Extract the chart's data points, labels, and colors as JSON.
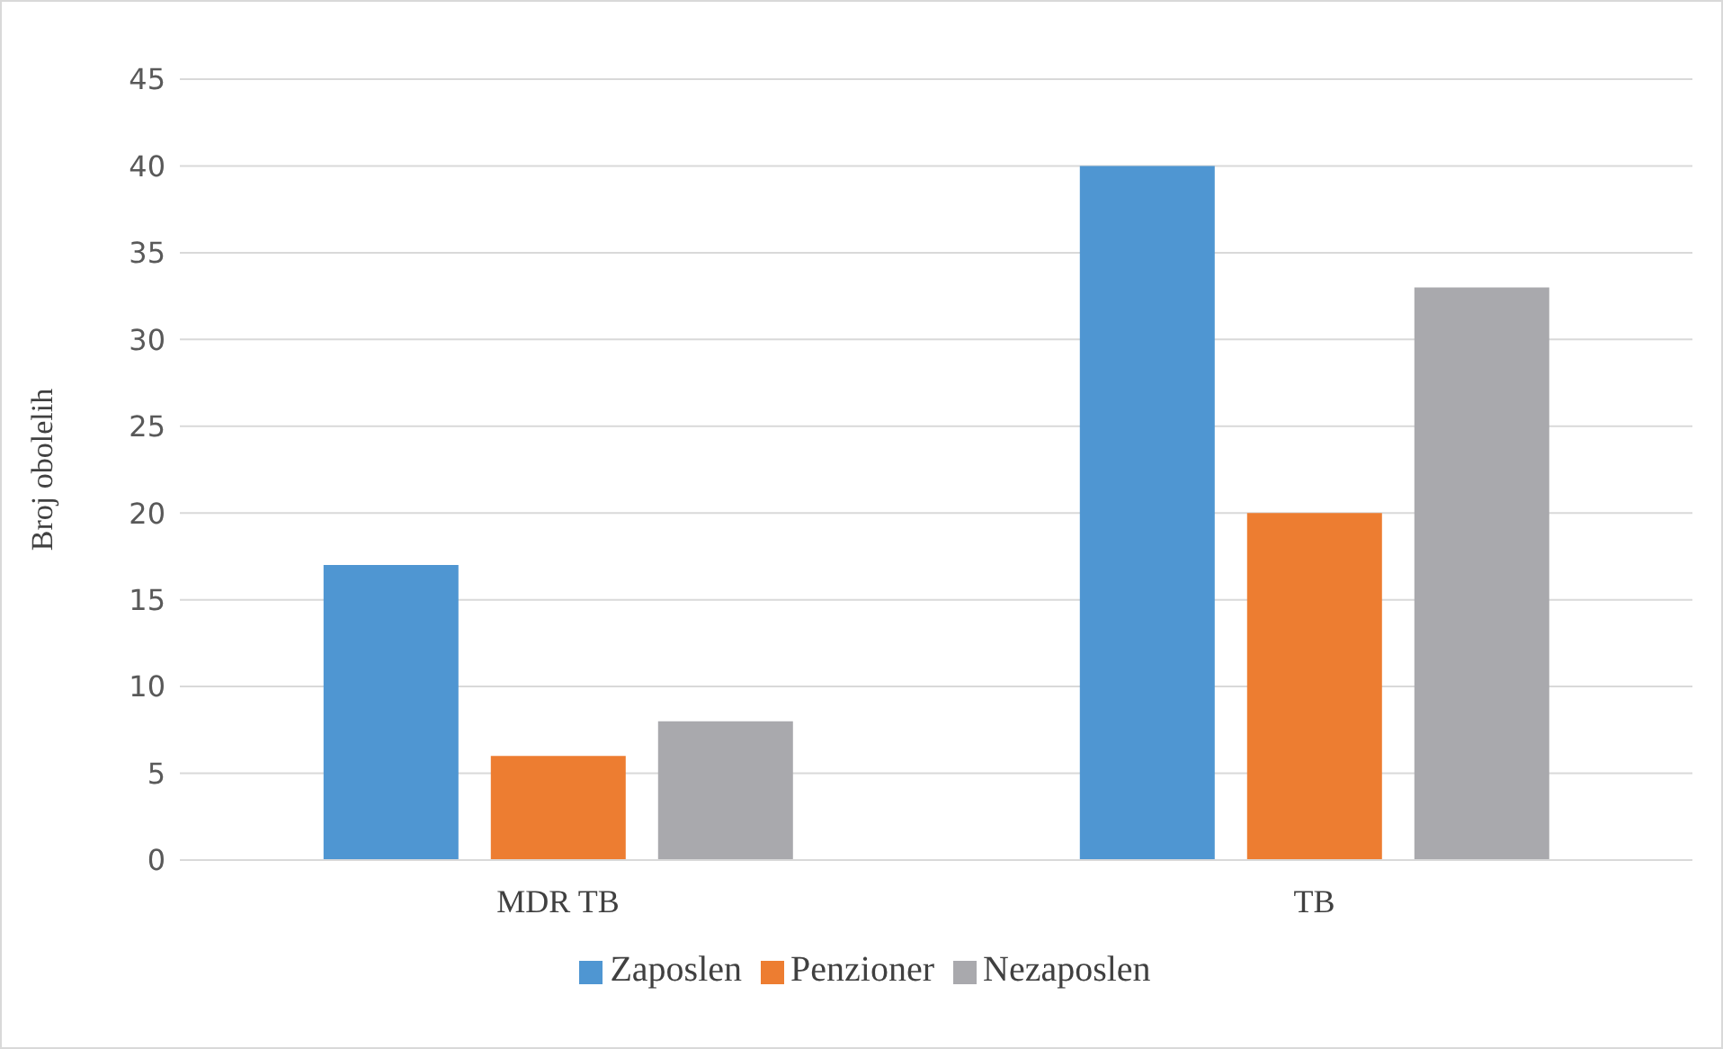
{
  "chart_data": {
    "type": "bar",
    "ylabel": "Broj obolelih",
    "categories": [
      "MDR TB",
      "TB"
    ],
    "series": [
      {
        "name": "Zaposlen",
        "color": "#4f96d2",
        "values": [
          17,
          40
        ]
      },
      {
        "name": "Penzioner",
        "color": "#ed7d31",
        "values": [
          6,
          20
        ]
      },
      {
        "name": "Nezaposlen",
        "color": "#a9a9ad",
        "values": [
          8,
          33
        ]
      }
    ],
    "ylim": [
      0,
      45
    ],
    "yticks": [
      0,
      5,
      10,
      15,
      20,
      25,
      30,
      35,
      40,
      45
    ],
    "grid": "y",
    "legend": "bottom"
  }
}
